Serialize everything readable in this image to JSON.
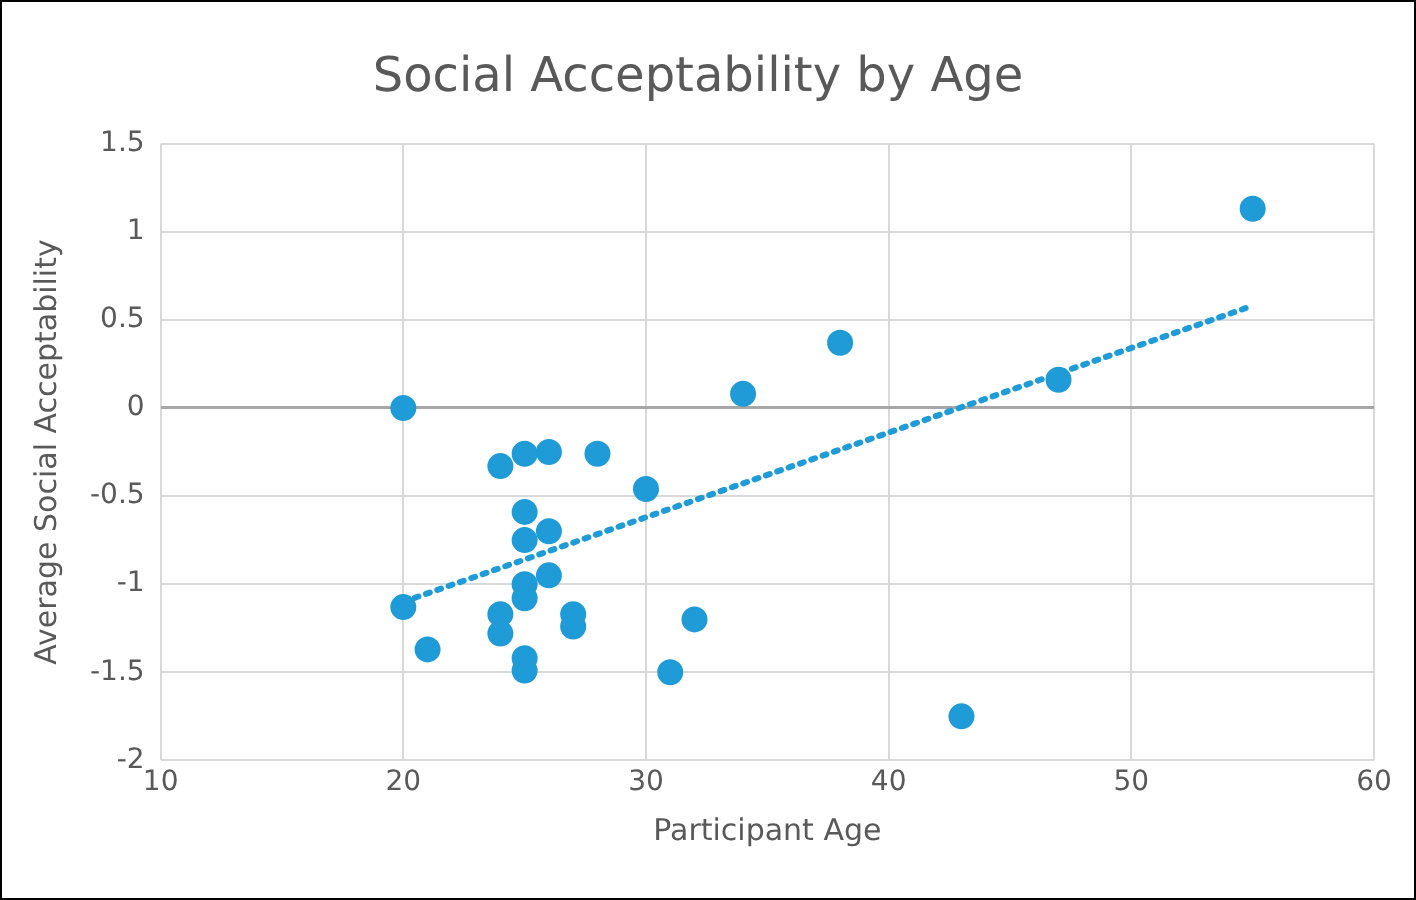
{
  "chart_data": {
    "type": "scatter",
    "title": "Social Acceptability by Age",
    "xlabel": "Participant Age",
    "ylabel": "Average Social Acceptability",
    "xlim": [
      10,
      60
    ],
    "xticks": [
      10,
      20,
      30,
      40,
      50,
      60
    ],
    "ylim": [
      -2,
      1.5
    ],
    "yticks": [
      -2,
      -1.5,
      -1,
      -0.5,
      0,
      0.5,
      1,
      1.5
    ],
    "grid": true,
    "legend": false,
    "marker": "circle",
    "series": [
      {
        "color": "#1f9bd7",
        "x": [
          20,
          20,
          21,
          24,
          24,
          24,
          25,
          25,
          25,
          25,
          25,
          25,
          25,
          26,
          26,
          26,
          27,
          27,
          28,
          30,
          31,
          32,
          34,
          38,
          43,
          47,
          55
        ],
        "values": [
          0,
          -1.13,
          -1.37,
          -0.33,
          -1.17,
          -1.28,
          -0.26,
          -0.59,
          -0.75,
          -1.0,
          -1.08,
          -1.42,
          -1.49,
          -0.25,
          -0.7,
          -0.95,
          -1.17,
          -1.24,
          -0.26,
          -0.46,
          -1.5,
          -1.2,
          0.08,
          0.37,
          -1.75,
          0.16,
          1.13
        ]
      },
      {
        "type": "line",
        "color": "#1f9bd7",
        "line_style": "dotted",
        "marker": "none",
        "x": [
          20,
          55
        ],
        "values": [
          -1.1,
          0.58
        ]
      }
    ]
  }
}
